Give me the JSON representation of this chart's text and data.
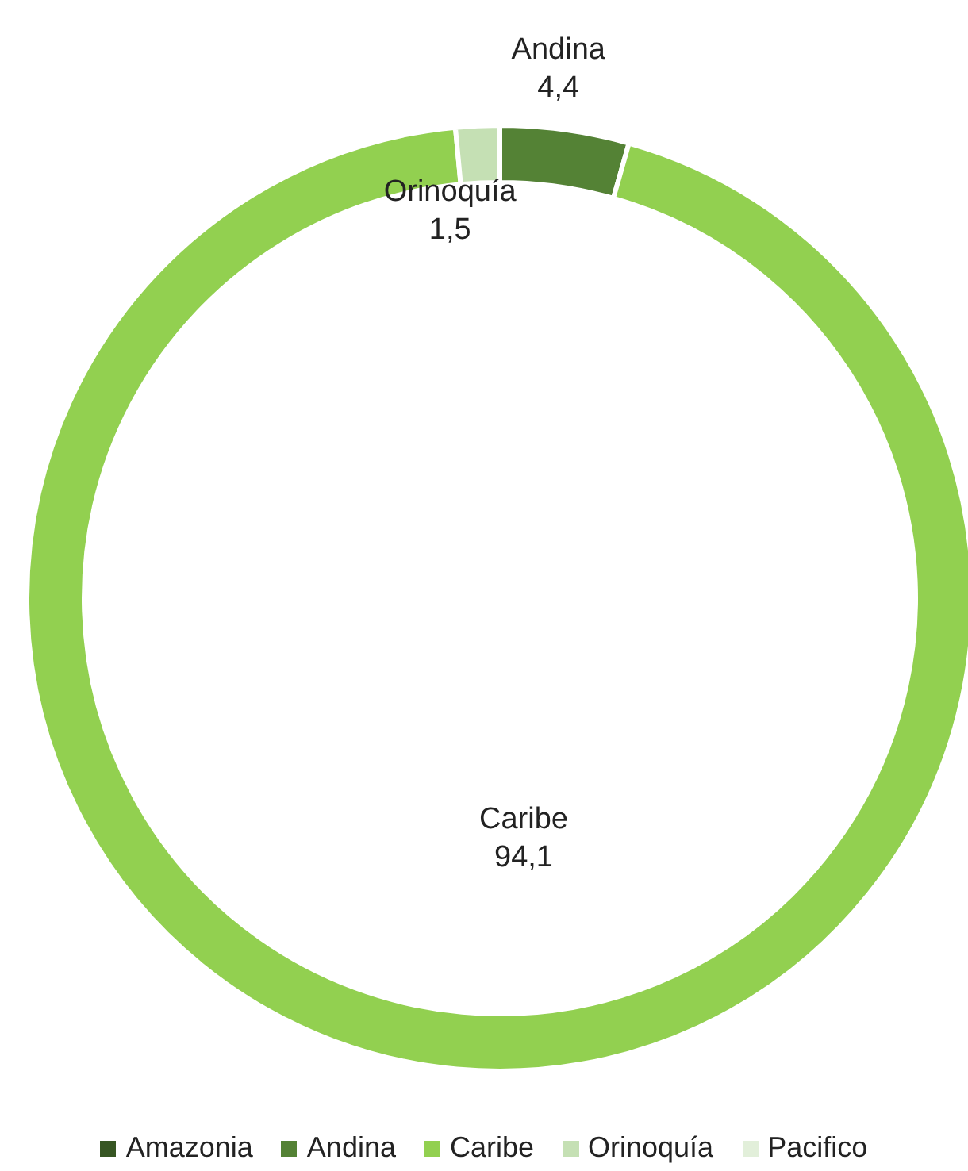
{
  "chart_data": {
    "type": "donut",
    "categories": [
      "Amazonia",
      "Andina",
      "Caribe",
      "Orinoquía",
      "Pacifico"
    ],
    "values": [
      0,
      4.4,
      94.1,
      1.5,
      0
    ],
    "colors": [
      "#375623",
      "#548235",
      "#92d050",
      "#c5e0b4",
      "#e2efda"
    ],
    "value_labels": [
      null,
      "4,4",
      "94,1",
      "1,5",
      null
    ],
    "legend": "bottom"
  }
}
